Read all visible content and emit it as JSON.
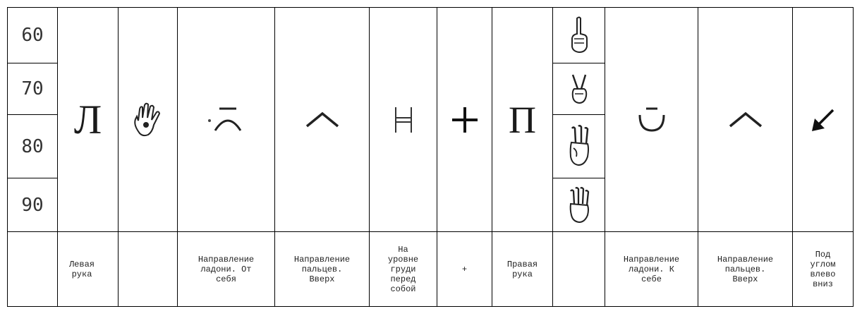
{
  "numbers": [
    "60",
    "70",
    "80",
    "90"
  ],
  "glyphs": {
    "left_hand": "Л",
    "right_hand": "П"
  },
  "icons": {
    "col2": "open-palm-hand-icon",
    "col3": "palm-away-direction-icon",
    "col4": "caret-up-icon",
    "col5": "chest-level-h-icon",
    "col6": "plus-icon",
    "hands": [
      "index-finger-up-hand-icon",
      "two-fingers-v-hand-icon",
      "three-fingers-hand-icon",
      "four-fingers-hand-icon"
    ],
    "col9": "palm-toward-self-icon",
    "col10": "caret-up-icon",
    "col11": "arrow-down-left-icon"
  },
  "captions": {
    "c0": "",
    "c1": "Левая рука",
    "c2": "",
    "c3": "Направление ладони. От себя",
    "c4": "Направление пальцев. Вверх",
    "c5": "На уровне груди перед собой",
    "c6": "+",
    "c7": "Правая рука",
    "c8": "",
    "c9": "Направление ладони. К себе",
    "c10": "Направление пальцев. Вверх",
    "c11": "Под углом влево вниз"
  }
}
